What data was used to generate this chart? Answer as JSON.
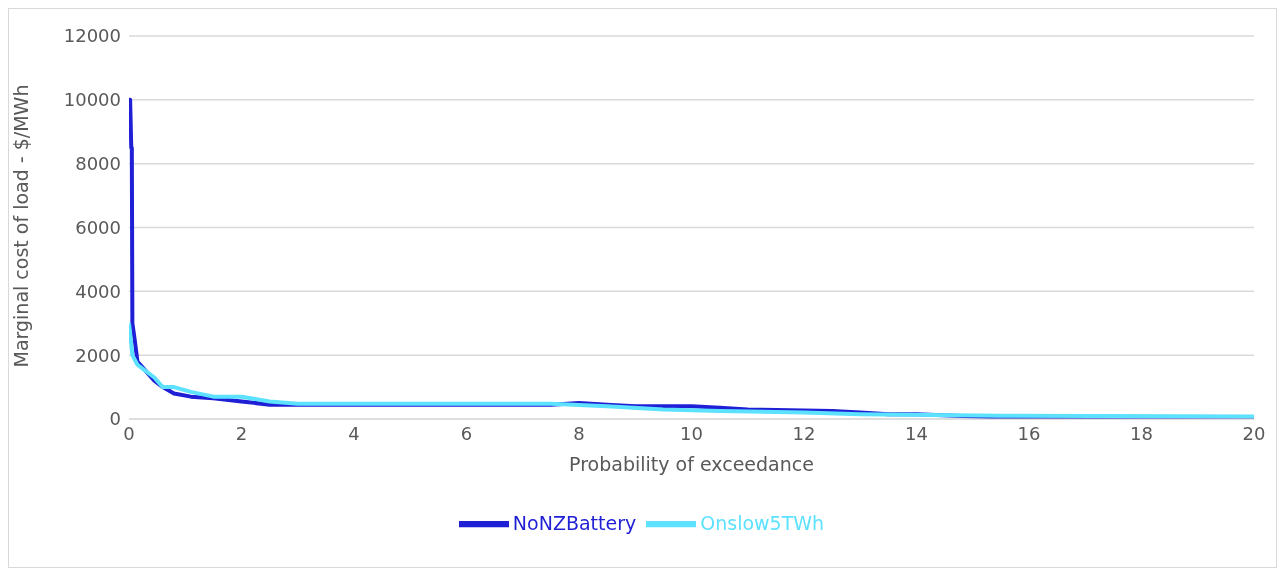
{
  "chart_data": {
    "type": "line",
    "xlabel": "Probability of exceedance",
    "ylabel": "Marginal cost of load - $/MWh",
    "xlim": [
      0,
      20
    ],
    "xticks": [
      0,
      2,
      4,
      6,
      8,
      10,
      12,
      14,
      16,
      18,
      20
    ],
    "ylim": [
      0,
      12000
    ],
    "yticks": [
      0,
      2000,
      4000,
      6000,
      8000,
      10000,
      12000
    ],
    "grid": "y",
    "legend": "bottom",
    "marker": "none",
    "line_style": "solid",
    "series": [
      {
        "name": "NoNZBattery",
        "color": "#1f1fd6",
        "x": [
          0,
          0.02,
          0.04,
          0.05,
          0.06,
          0.1,
          0.15,
          0.3,
          0.45,
          0.6,
          0.8,
          1.1,
          1.5,
          2,
          2.5,
          3,
          7.5,
          8,
          8.5,
          9,
          10,
          10.5,
          11,
          12.5,
          13,
          13.5,
          14,
          15.5,
          20
        ],
        "values": [
          10000,
          10000,
          8500,
          8500,
          3000,
          2500,
          1800,
          1500,
          1200,
          1000,
          800,
          700,
          650,
          550,
          450,
          450,
          450,
          500,
          450,
          400,
          400,
          350,
          300,
          250,
          200,
          150,
          150,
          50,
          0
        ]
      },
      {
        "name": "Onslow5TWh",
        "color": "#5ce1ff",
        "x": [
          0,
          0.03,
          0.06,
          0.15,
          0.3,
          0.45,
          0.6,
          0.8,
          1.1,
          1.5,
          2,
          2.5,
          3,
          7.5,
          8.5,
          9.5,
          10.5,
          12,
          13,
          15.5,
          20
        ],
        "values": [
          3000,
          2500,
          2000,
          1700,
          1500,
          1300,
          1000,
          1000,
          850,
          700,
          700,
          550,
          480,
          480,
          400,
          300,
          250,
          200,
          150,
          100,
          80
        ]
      }
    ]
  }
}
